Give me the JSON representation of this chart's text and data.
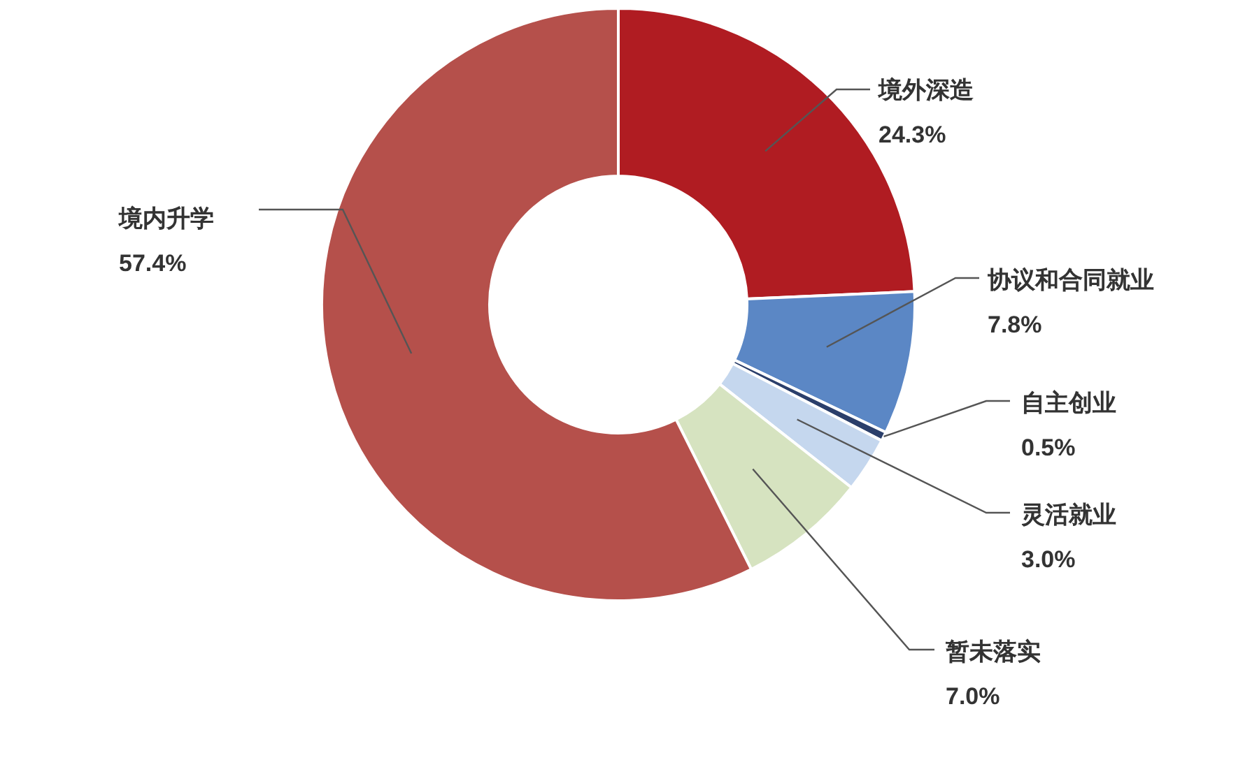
{
  "chart_data": {
    "type": "donut",
    "categories": [
      "境外深造",
      "协议和合同就业",
      "自主创业",
      "灵活就业",
      "暂未落实",
      "境内升学"
    ],
    "values": [
      24.3,
      7.8,
      0.5,
      3.0,
      7.0,
      57.4
    ],
    "colors": [
      "#b01c22",
      "#5b87c5",
      "#2b3f6b",
      "#c5d7ee",
      "#d6e3c0",
      "#b5504b"
    ],
    "value_labels": [
      "24.3%",
      "7.8%",
      "0.5%",
      "3.0%",
      "7.0%",
      "57.4%"
    ]
  }
}
